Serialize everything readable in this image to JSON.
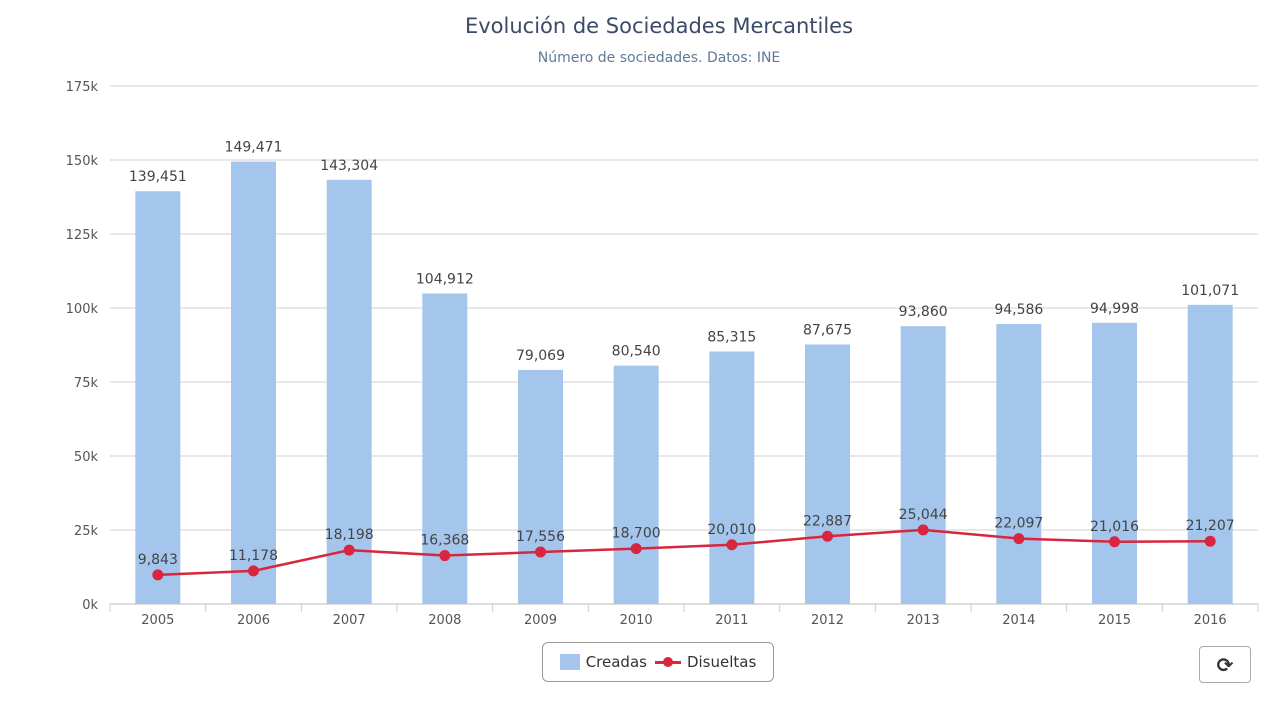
{
  "chart_data": {
    "type": "bar+line",
    "title": "Evolución de Sociedades Mercantiles",
    "subtitle": "Número de sociedades. Datos: INE",
    "categories": [
      "2005",
      "2006",
      "2007",
      "2008",
      "2009",
      "2010",
      "2011",
      "2012",
      "2013",
      "2014",
      "2015",
      "2016"
    ],
    "series": [
      {
        "name": "Creadas",
        "type": "bar",
        "color": "#a4c6ec",
        "values": [
          139451,
          149471,
          143304,
          104912,
          79069,
          80540,
          85315,
          87675,
          93860,
          94586,
          94998,
          101071
        ]
      },
      {
        "name": "Disueltas",
        "type": "line",
        "color": "#d7263d",
        "values": [
          9843,
          11178,
          18198,
          16368,
          17556,
          18700,
          20010,
          22887,
          25044,
          22097,
          21016,
          21207
        ]
      }
    ],
    "ylim": [
      0,
      175000
    ],
    "yticks": [
      0,
      25000,
      50000,
      75000,
      100000,
      125000,
      150000,
      175000
    ],
    "ytick_labels": [
      "0k",
      "25k",
      "50k",
      "75k",
      "100k",
      "125k",
      "150k",
      "175k"
    ],
    "grid": true,
    "legend": "bottom-center"
  },
  "toolbar": {
    "refresh_icon": "refresh-icon",
    "refresh_glyph": "⟳"
  }
}
